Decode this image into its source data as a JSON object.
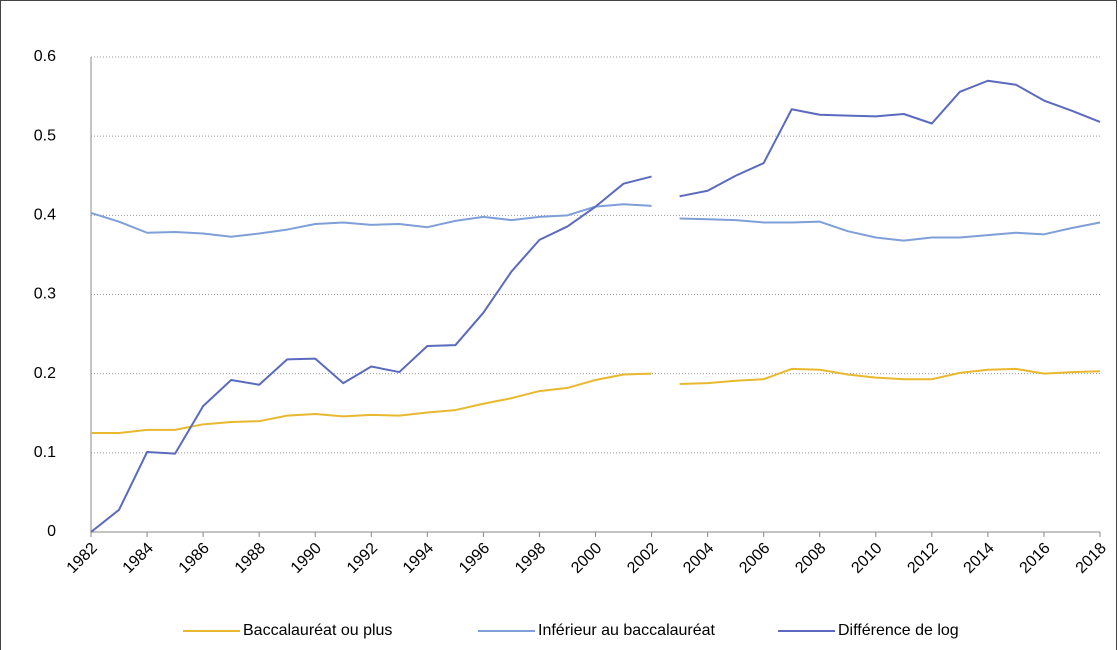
{
  "chart_data": {
    "type": "line",
    "x": [
      1982,
      1983,
      1984,
      1985,
      1986,
      1987,
      1988,
      1989,
      1990,
      1991,
      1992,
      1993,
      1994,
      1995,
      1996,
      1997,
      1998,
      1999,
      2000,
      2001,
      2002,
      2002.5,
      2003,
      2004,
      2005,
      2006,
      2007,
      2008,
      2009,
      2010,
      2011,
      2012,
      2013,
      2014,
      2015,
      2016,
      2017,
      2018
    ],
    "xlim": [
      1982,
      2018
    ],
    "xticks": [
      1982,
      1984,
      1986,
      1988,
      1990,
      1992,
      1994,
      1996,
      1998,
      2000,
      2002,
      2004,
      2006,
      2008,
      2010,
      2012,
      2014,
      2016,
      2018
    ],
    "ylim": [
      0,
      0.6
    ],
    "yticks": [
      0,
      0.1,
      0.2,
      0.3,
      0.4,
      0.5,
      0.6
    ],
    "grid": true,
    "legend": "bottom",
    "series": [
      {
        "name": "Baccalauréat ou plus",
        "color": "#e8b92e",
        "values": [
          0.125,
          0.125,
          0.129,
          0.129,
          0.136,
          0.139,
          0.14,
          0.147,
          0.149,
          0.146,
          0.148,
          0.147,
          0.151,
          0.154,
          0.162,
          0.169,
          0.178,
          0.182,
          0.192,
          0.199,
          0.2,
          null,
          0.187,
          0.188,
          0.191,
          0.193,
          0.206,
          0.205,
          0.199,
          0.195,
          0.193,
          0.193,
          0.201,
          0.205,
          0.206,
          0.2,
          0.202,
          0.203
        ]
      },
      {
        "name": "Inférieur au baccalauréat",
        "color": "#7f9fd8",
        "values": [
          0.403,
          0.392,
          0.378,
          0.379,
          0.377,
          0.373,
          0.377,
          0.382,
          0.389,
          0.391,
          0.388,
          0.389,
          0.385,
          0.393,
          0.398,
          0.394,
          0.398,
          0.4,
          0.411,
          0.414,
          0.412,
          null,
          0.396,
          0.395,
          0.394,
          0.391,
          0.391,
          0.392,
          0.38,
          0.372,
          0.368,
          0.372,
          0.372,
          0.375,
          0.378,
          0.376,
          0.384,
          0.391
        ]
      },
      {
        "name": "Différence de log",
        "color": "#5a6abf",
        "values": [
          0.0,
          0.028,
          0.101,
          0.099,
          0.159,
          0.192,
          0.186,
          0.218,
          0.219,
          0.188,
          0.209,
          0.202,
          0.235,
          0.236,
          0.277,
          0.329,
          0.369,
          0.386,
          0.411,
          0.44,
          0.449,
          null,
          0.424,
          0.431,
          0.45,
          0.466,
          0.534,
          0.527,
          0.526,
          0.525,
          0.528,
          0.516,
          0.556,
          0.57,
          0.565,
          0.545,
          0.532,
          0.518
        ]
      }
    ]
  }
}
